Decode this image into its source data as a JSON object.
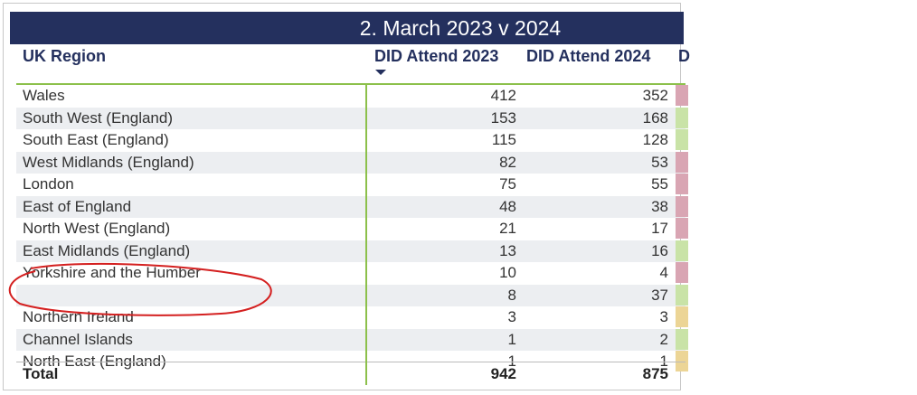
{
  "header": {
    "title": "2. March 2023 v 2024"
  },
  "table": {
    "columns": [
      "UK Region",
      "DID Attend 2023",
      "DID Attend 2024",
      "D"
    ],
    "rows": [
      {
        "region": "Wales",
        "attend_2023": 412,
        "attend_2024": 352,
        "color": "#d9a5b3"
      },
      {
        "region": "South West (England)",
        "attend_2023": 153,
        "attend_2024": 168,
        "color": "#c9e3a7"
      },
      {
        "region": "South East (England)",
        "attend_2023": 115,
        "attend_2024": 128,
        "color": "#c9e3a7"
      },
      {
        "region": "West Midlands (England)",
        "attend_2023": 82,
        "attend_2024": 53,
        "color": "#d9a5b3"
      },
      {
        "region": "London",
        "attend_2023": 75,
        "attend_2024": 55,
        "color": "#d9a5b3"
      },
      {
        "region": "East of England",
        "attend_2023": 48,
        "attend_2024": 38,
        "color": "#d9a5b3"
      },
      {
        "region": "North West (England)",
        "attend_2023": 21,
        "attend_2024": 17,
        "color": "#d9a5b3"
      },
      {
        "region": "East Midlands (England)",
        "attend_2023": 13,
        "attend_2024": 16,
        "color": "#c9e3a7"
      },
      {
        "region": "Yorkshire and the Humber",
        "attend_2023": 10,
        "attend_2024": 4,
        "color": "#d9a5b3"
      },
      {
        "region": null,
        "attend_2023": 8,
        "attend_2024": 37,
        "color": "#c9e3a7"
      },
      {
        "region": "Northern Ireland",
        "attend_2023": 3,
        "attend_2024": 3,
        "color": "#ecd596"
      },
      {
        "region": "Channel Islands",
        "attend_2023": 1,
        "attend_2024": 2,
        "color": "#c9e3a7"
      },
      {
        "region": "North East (England)",
        "attend_2023": 1,
        "attend_2024": 1,
        "color": "#ecd596"
      }
    ],
    "total": {
      "label": "Total",
      "attend_2023": 942,
      "attend_2024": 875
    }
  }
}
